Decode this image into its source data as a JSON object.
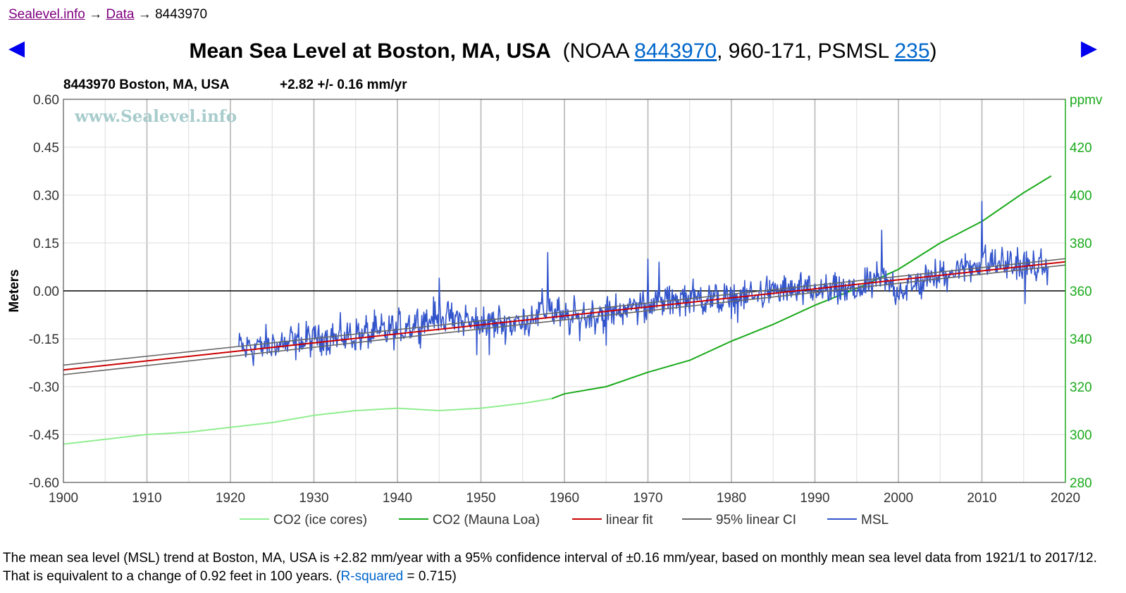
{
  "breadcrumb": {
    "site_label": "Sealevel.info",
    "sep1": "→",
    "data_label": "Data",
    "sep2": "→",
    "station": "8443970"
  },
  "nav": {
    "prev_arrow": "◀",
    "next_arrow": "▶"
  },
  "title": {
    "main": "Mean Sea Level at Boston, MA, USA",
    "open": "(NOAA ",
    "noaa_id": "8443970",
    "mid": ", 960-171, PSMSL ",
    "psmsl_id": "235",
    "close": ")"
  },
  "colors": {
    "co2_ice": "#90ee90",
    "co2_mauna": "#1aaa1a",
    "linear_fit": "#cc0000",
    "ci": "#666666",
    "msl": "#3355cc",
    "right_axis": "#1aaa1a",
    "watermark": "#a8cccc"
  },
  "chart_data": {
    "type": "line",
    "subtitle_station": "8443970 Boston, MA, USA",
    "subtitle_rate": "+2.82 +/- 0.16 mm/yr",
    "watermark": "www.Sealevel.info",
    "ylabel": "Meters",
    "y2label": "ppmv",
    "xlim": [
      1900,
      2020
    ],
    "ylim": [
      -0.6,
      0.6
    ],
    "y2lim": [
      280,
      440
    ],
    "x_ticks": [
      "1900",
      "1910",
      "1920",
      "1930",
      "1940",
      "1950",
      "1960",
      "1970",
      "1980",
      "1990",
      "2000",
      "2010",
      "2020"
    ],
    "y_ticks": [
      "0.60",
      "0.45",
      "0.30",
      "0.15",
      "0.00",
      "-0.15",
      "-0.30",
      "-0.45",
      "-0.60"
    ],
    "y2_ticks": [
      "420",
      "400",
      "380",
      "360",
      "340",
      "320",
      "300",
      "280"
    ],
    "legend": [
      {
        "key": "co2_ice",
        "label": "CO2 (ice cores)"
      },
      {
        "key": "co2_mauna",
        "label": "CO2 (Mauna Loa)"
      },
      {
        "key": "linear_fit",
        "label": "linear fit"
      },
      {
        "key": "ci",
        "label": "95% linear CI"
      },
      {
        "key": "msl",
        "label": "MSL"
      }
    ],
    "co2_ice": {
      "x": [
        1900,
        1905,
        1910,
        1915,
        1920,
        1925,
        1930,
        1935,
        1940,
        1945,
        1950,
        1955,
        1958.5
      ],
      "y": [
        296,
        298,
        300,
        301,
        303,
        305,
        308,
        310,
        311,
        310,
        311,
        313,
        315
      ]
    },
    "co2_mauna": {
      "x": [
        1958.5,
        1960,
        1965,
        1970,
        1975,
        1980,
        1985,
        1990,
        1995,
        2000,
        2005,
        2010,
        2015,
        2018.3
      ],
      "y": [
        315,
        317,
        320,
        326,
        331,
        339,
        346,
        354,
        361,
        369,
        380,
        389,
        401,
        408
      ]
    },
    "linear_fit": {
      "x": [
        1900,
        2020
      ],
      "y": [
        -0.2475,
        0.0909
      ]
    },
    "ci_upper": {
      "x": [
        1900,
        2020
      ],
      "y": [
        -0.2325,
        0.1009
      ]
    },
    "ci_lower": {
      "x": [
        1900,
        2020
      ],
      "y": [
        -0.2625,
        0.0809
      ]
    },
    "msl_anchors": {
      "x": [
        1921,
        1925,
        1930,
        1935,
        1940,
        1945,
        1950,
        1955,
        1958,
        1960,
        1965,
        1970,
        1975,
        1980,
        1985,
        1990,
        1995,
        1998,
        2000,
        2005,
        2010,
        2015,
        2017.9
      ],
      "y": [
        -0.18,
        -0.17,
        -0.15,
        -0.14,
        -0.12,
        -0.08,
        -0.1,
        -0.1,
        -0.05,
        -0.09,
        -0.07,
        -0.04,
        -0.02,
        -0.03,
        0.0,
        0.0,
        0.0,
        0.04,
        0.0,
        0.05,
        0.09,
        0.08,
        0.07
      ]
    },
    "msl_spikes": {
      "x": [
        1945,
        1949.5,
        1951,
        1958,
        1965,
        1970,
        1971.3,
        1998,
        2010,
        2015.2
      ],
      "y": [
        0.04,
        -0.2,
        -0.2,
        0.12,
        -0.17,
        0.1,
        0.09,
        0.19,
        0.28,
        -0.04
      ]
    },
    "msl_range": {
      "start": "1921/1",
      "end": "2017/12"
    }
  },
  "summary": {
    "text": "The mean sea level (MSL) trend at Boston, MA, USA is +2.82 mm/year with a 95% confidence interval of ±0.16 mm/year, based on monthly mean sea level data from 1921/1 to 2017/12. That is equivalent to a change of 0.92 feet in 100 years. (",
    "rsq_link": "R-squared",
    "rsq_value": " = 0.715)"
  }
}
